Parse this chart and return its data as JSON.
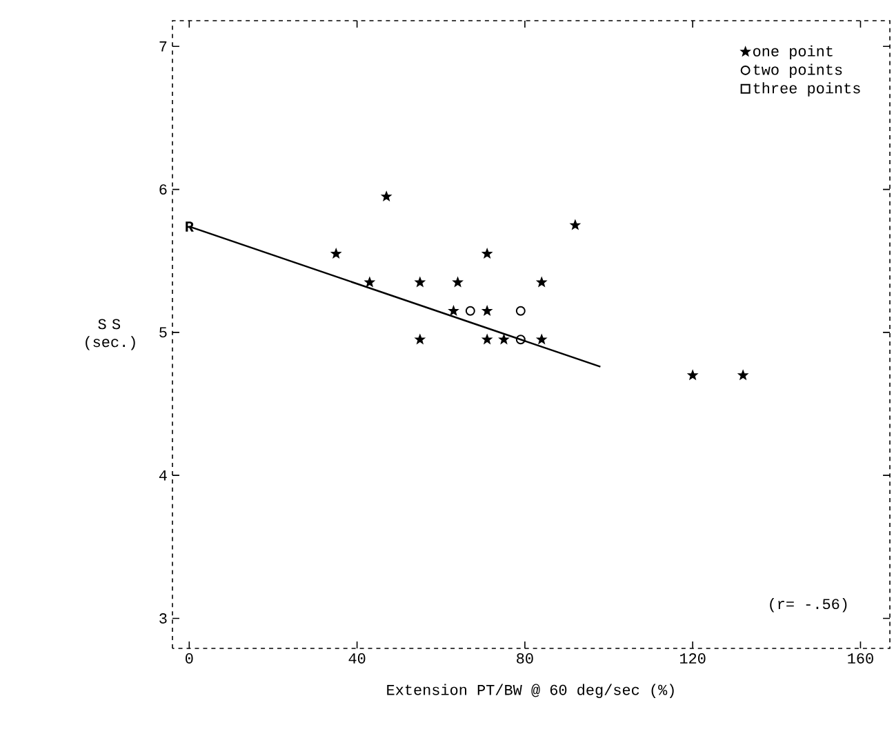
{
  "chart_data": {
    "type": "scatter",
    "xlabel": "Extension PT/BW @ 60 deg/sec  (%)",
    "ylabel": "S S (sec.)",
    "xlim": [
      -4,
      167
    ],
    "ylim": [
      2.79,
      7.18
    ],
    "xticks": [
      0,
      40,
      80,
      120,
      160
    ],
    "yticks": [
      3,
      4,
      5,
      6,
      7
    ],
    "legend": "top right",
    "grid": false,
    "series": [
      {
        "name": "one point",
        "color": "#000000",
        "marker": "star",
        "x": [
          47,
          35,
          43,
          55,
          64,
          71,
          84,
          92,
          63,
          71,
          55,
          71,
          75,
          84,
          120,
          132
        ],
        "values": [
          5.95,
          5.55,
          5.35,
          5.35,
          5.35,
          5.55,
          5.35,
          5.75,
          5.15,
          5.15,
          4.95,
          4.95,
          4.95,
          4.95,
          4.7,
          4.7
        ]
      },
      {
        "name": "two points",
        "color": "#000000",
        "marker": "circle",
        "x": [
          67,
          79,
          79
        ],
        "values": [
          5.15,
          5.15,
          4.95
        ]
      },
      {
        "name": "three points",
        "color": "#000000",
        "marker": "square"
      },
      {
        "type": "line",
        "color": "#000000",
        "marker": "none",
        "line_style": "solid",
        "x": [
          0,
          98
        ],
        "values": [
          5.74,
          4.76
        ]
      }
    ],
    "annotations": [
      {
        "text": "R",
        "x": 0,
        "y": 5.74
      },
      "(r= -.56)"
    ]
  }
}
